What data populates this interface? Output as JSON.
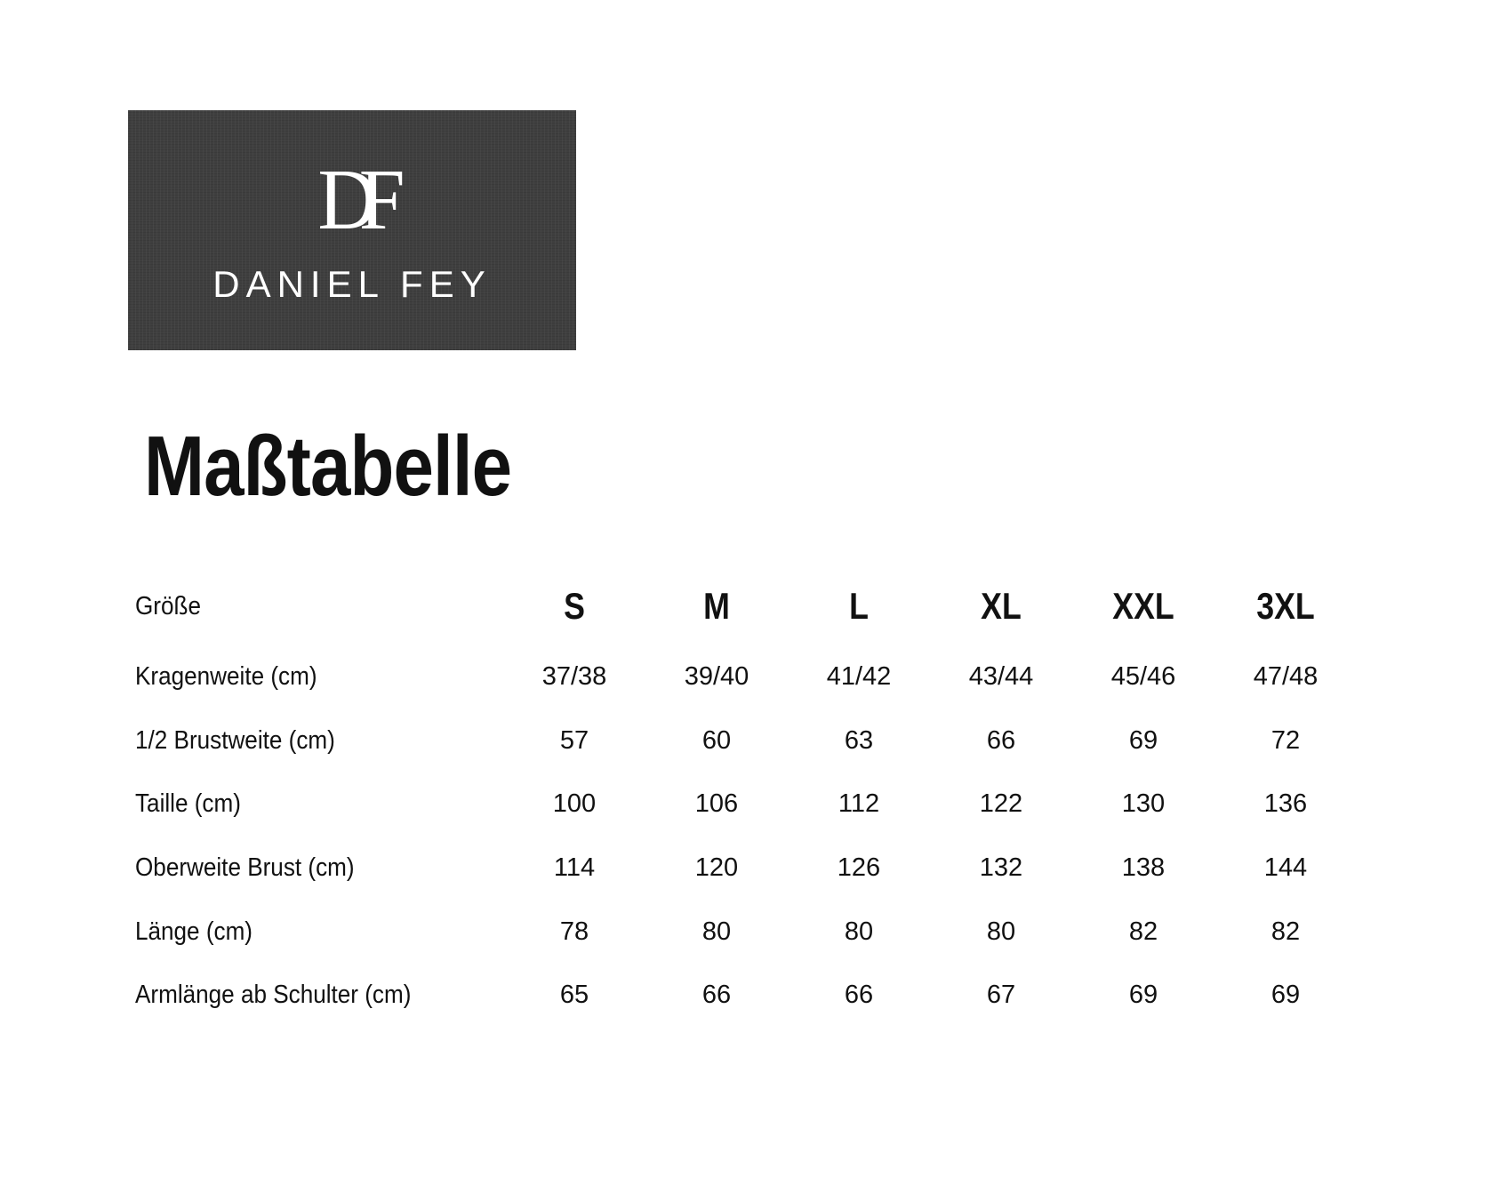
{
  "logo": {
    "monogram": "DF",
    "brand": "DANIEL FEY"
  },
  "title": "Maßtabelle",
  "table": {
    "header_label": "Größe",
    "sizes": [
      "S",
      "M",
      "L",
      "XL",
      "XXL",
      "3XL"
    ],
    "rows": [
      {
        "label": "Kragenweite (cm)",
        "values": [
          "37/38",
          "39/40",
          "41/42",
          "43/44",
          "45/46",
          "47/48"
        ]
      },
      {
        "label": "1/2 Brustweite (cm)",
        "values": [
          "57",
          "60",
          "63",
          "66",
          "69",
          "72"
        ]
      },
      {
        "label": "Taille (cm)",
        "values": [
          "100",
          "106",
          "112",
          "122",
          "130",
          "136"
        ]
      },
      {
        "label": "Oberweite Brust (cm)",
        "values": [
          "114",
          "120",
          "126",
          "132",
          "138",
          "144"
        ]
      },
      {
        "label": "Länge (cm)",
        "values": [
          "78",
          "80",
          "80",
          "80",
          "82",
          "82"
        ]
      },
      {
        "label": "Armlänge ab Schulter (cm)",
        "values": [
          "65",
          "66",
          "66",
          "67",
          "69",
          "69"
        ]
      }
    ]
  }
}
